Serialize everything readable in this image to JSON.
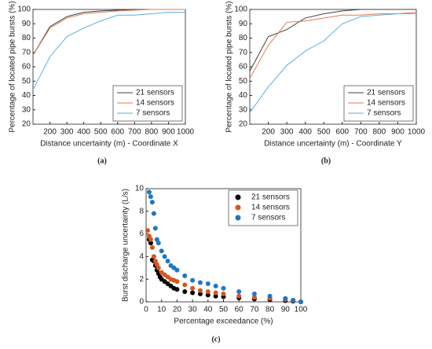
{
  "chart_data": [
    {
      "type": "line",
      "caption": "(a)",
      "xlabel": "Distance uncertainty (m) - Coordinate X",
      "ylabel": "Percentage of located pipe bursts (%)",
      "x": [
        100,
        200,
        300,
        400,
        500,
        600,
        700,
        800,
        900,
        1000
      ],
      "xlim": [
        100,
        1000
      ],
      "xticks": [
        200,
        300,
        400,
        500,
        600,
        700,
        800,
        900,
        1000
      ],
      "ylim": [
        20,
        100
      ],
      "yticks": [
        20,
        30,
        40,
        50,
        60,
        70,
        80,
        90,
        100
      ],
      "legend": "lower right",
      "series": [
        {
          "name": "21 sensors",
          "color": "#404040",
          "values": [
            68,
            88,
            95,
            98,
            99,
            99.5,
            100,
            100,
            100,
            100
          ]
        },
        {
          "name": "14 sensors",
          "color": "#e07b4f",
          "values": [
            68,
            87,
            94,
            97,
            98,
            99,
            99.5,
            100,
            100,
            100
          ]
        },
        {
          "name": "7 sensors",
          "color": "#5aaee0",
          "values": [
            44,
            67,
            81,
            87,
            92,
            96,
            96,
            97,
            98,
            98
          ]
        }
      ]
    },
    {
      "type": "line",
      "caption": "(b)",
      "xlabel": "Distance uncertainty (m) - Coordinate Y",
      "ylabel": "Percentage of located pipe bursts (%)",
      "x": [
        100,
        200,
        300,
        400,
        500,
        600,
        700,
        800,
        900,
        1000
      ],
      "xlim": [
        100,
        1000
      ],
      "xticks": [
        200,
        300,
        400,
        500,
        600,
        700,
        800,
        900,
        1000
      ],
      "ylim": [
        20,
        100
      ],
      "yticks": [
        20,
        30,
        40,
        50,
        60,
        70,
        80,
        90,
        100
      ],
      "legend": "lower right",
      "series": [
        {
          "name": "21 sensors",
          "color": "#404040",
          "values": [
            57,
            81,
            86,
            94,
            97,
            99,
            100,
            100,
            100,
            100
          ]
        },
        {
          "name": "14 sensors",
          "color": "#e07b4f",
          "values": [
            52,
            75,
            91,
            92,
            94,
            96,
            96,
            97,
            97,
            98
          ]
        },
        {
          "name": "7 sensors",
          "color": "#5aaee0",
          "values": [
            28,
            46,
            61,
            71,
            78,
            90,
            95,
            96,
            97,
            97
          ]
        }
      ]
    },
    {
      "type": "scatter",
      "caption": "(c)",
      "xlabel": "Percentage exceedance (%)",
      "ylabel": "Burst discharge uncertainty (L/s)",
      "xlim": [
        0,
        100
      ],
      "xticks": [
        0,
        10,
        20,
        30,
        40,
        50,
        60,
        70,
        80,
        90,
        100
      ],
      "ylim": [
        0,
        10
      ],
      "yticks": [
        0,
        2,
        4,
        6,
        8,
        10
      ],
      "legend": "upper right",
      "series": [
        {
          "name": "21 sensors",
          "color": "#000000",
          "x": [
            2,
            3,
            4,
            5,
            6,
            7,
            8,
            9,
            10,
            12,
            14,
            16,
            18,
            20,
            25,
            30,
            35,
            40,
            45,
            50,
            60,
            70,
            80,
            90,
            95,
            100
          ],
          "values": [
            5.5,
            5.2,
            3.7,
            3.6,
            3.2,
            2.8,
            2.5,
            2.2,
            2.0,
            1.8,
            1.6,
            1.4,
            1.2,
            1.1,
            0.9,
            0.8,
            0.7,
            0.6,
            0.5,
            0.45,
            0.35,
            0.25,
            0.2,
            0.1,
            0.05,
            0
          ]
        },
        {
          "name": "14 sensors",
          "color": "#d9541e",
          "x": [
            1,
            2,
            3,
            4,
            5,
            6,
            7,
            8,
            10,
            12,
            14,
            16,
            18,
            20,
            25,
            30,
            35,
            40,
            45,
            50,
            60,
            70,
            80,
            90,
            95,
            100
          ],
          "values": [
            6.3,
            5.8,
            5.5,
            4.8,
            4.0,
            3.6,
            3.3,
            3.0,
            2.6,
            2.4,
            2.2,
            2.0,
            1.9,
            1.8,
            1.5,
            1.2,
            1.0,
            0.9,
            0.8,
            0.7,
            0.5,
            0.4,
            0.3,
            0.2,
            0.1,
            0
          ]
        },
        {
          "name": "7 sensors",
          "color": "#1f77c4",
          "x": [
            2,
            3,
            4,
            5,
            6,
            7,
            8,
            10,
            12,
            14,
            16,
            18,
            20,
            25,
            30,
            35,
            40,
            45,
            50,
            60,
            70,
            80,
            90,
            95,
            100
          ],
          "values": [
            9.7,
            9.3,
            8.8,
            7.8,
            6.5,
            5.5,
            5.2,
            4.5,
            4.0,
            3.6,
            3.2,
            3.0,
            2.8,
            2.3,
            1.9,
            1.7,
            1.6,
            1.4,
            1.2,
            0.9,
            0.7,
            0.5,
            0.3,
            0.15,
            0
          ]
        }
      ]
    }
  ]
}
